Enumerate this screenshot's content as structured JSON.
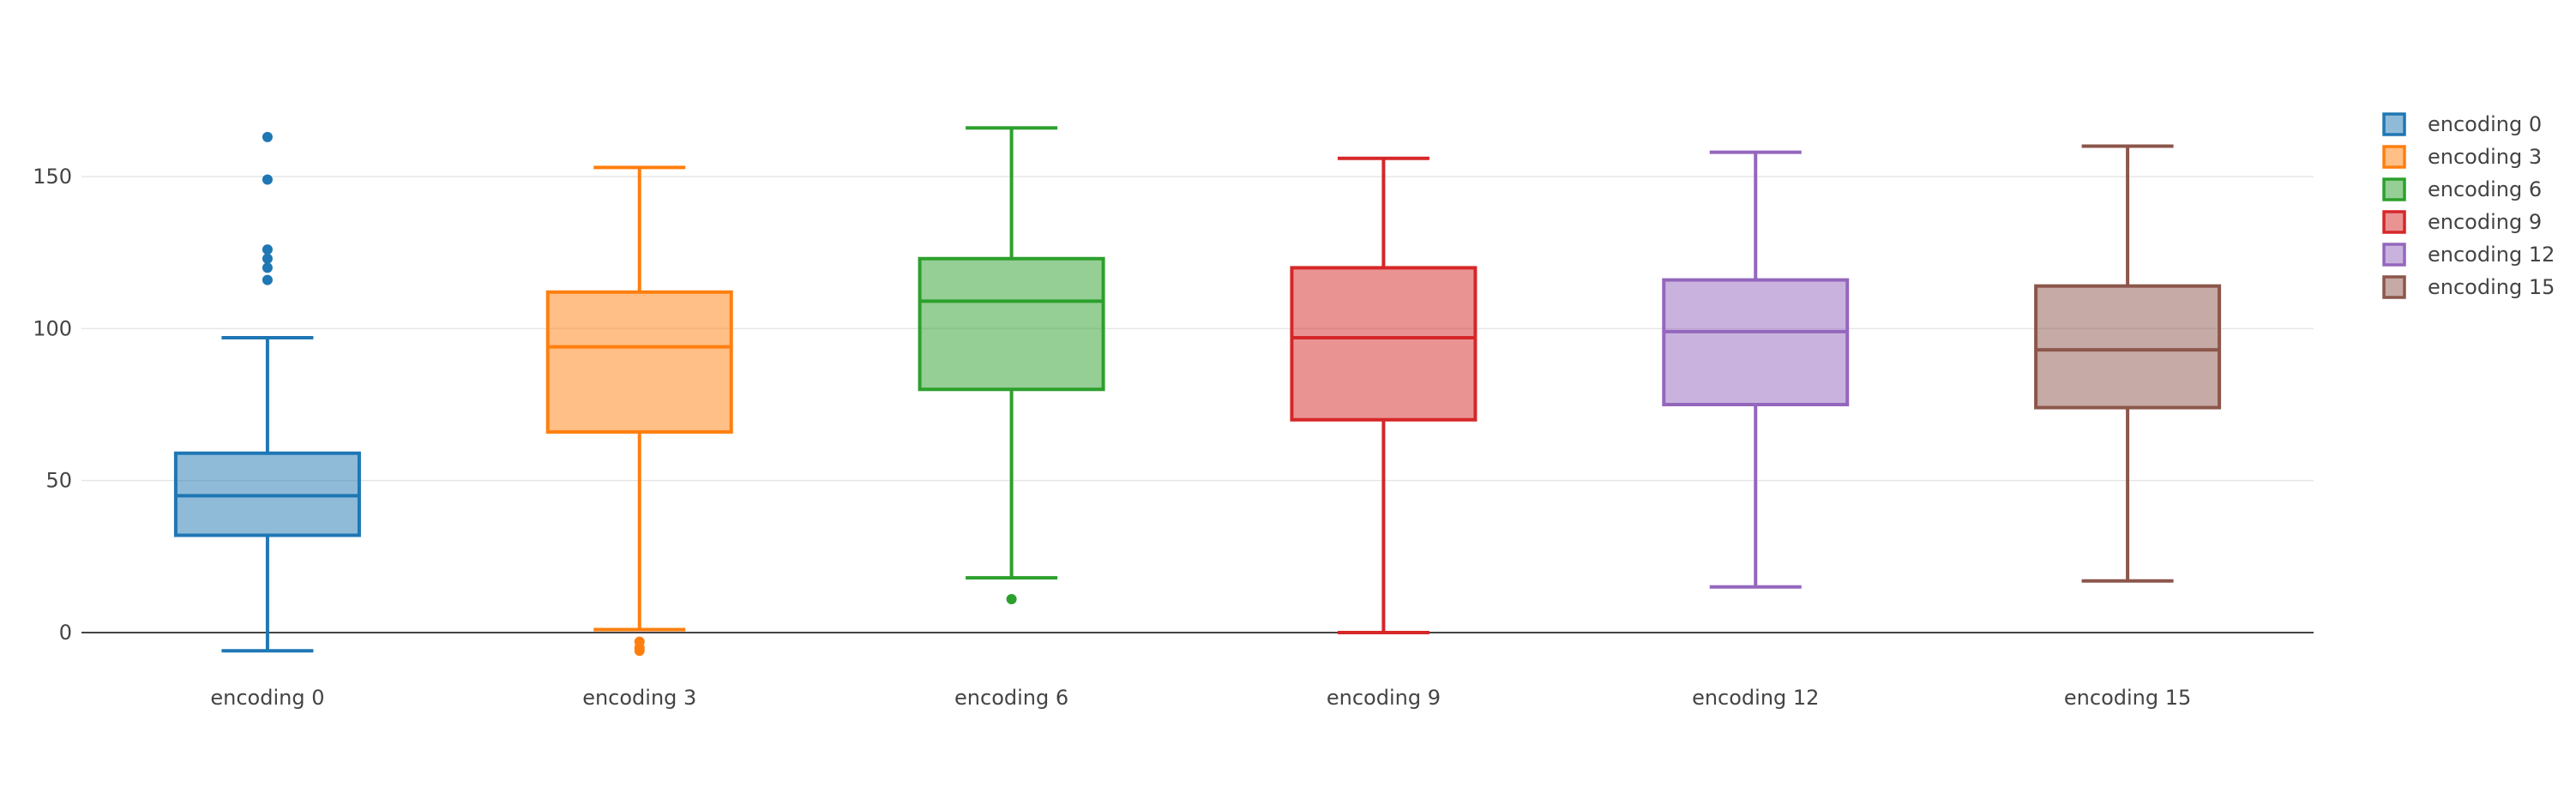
{
  "chart_data": {
    "type": "box",
    "title": "",
    "xlabel": "",
    "ylabel": "",
    "ylim": [
      -12,
      190
    ],
    "yticks": [
      0,
      50,
      100,
      150
    ],
    "grid": true,
    "legend_placement": "top-right",
    "series": [
      {
        "name": "encoding 0",
        "color": "#1f77b4",
        "min": -6,
        "q1": 32,
        "median": 45,
        "q3": 59,
        "max": 97,
        "outliers": [
          116,
          120,
          123,
          126,
          149,
          163
        ]
      },
      {
        "name": "encoding 3",
        "color": "#ff7f0e",
        "min": 1,
        "q1": 66,
        "median": 94,
        "q3": 112,
        "max": 153,
        "outliers": [
          -5,
          -6,
          -3
        ]
      },
      {
        "name": "encoding 6",
        "color": "#2ca02c",
        "min": 18,
        "q1": 80,
        "median": 109,
        "q3": 123,
        "max": 166,
        "outliers": [
          11
        ]
      },
      {
        "name": "encoding 9",
        "color": "#d62728",
        "min": 0,
        "q1": 70,
        "median": 97,
        "q3": 120,
        "max": 156,
        "outliers": []
      },
      {
        "name": "encoding 12",
        "color": "#9467bd",
        "min": 15,
        "q1": 75,
        "median": 99,
        "q3": 116,
        "max": 158,
        "outliers": []
      },
      {
        "name": "encoding 15",
        "color": "#8c564b",
        "min": 17,
        "q1": 74,
        "median": 93,
        "q3": 114,
        "max": 160,
        "outliers": []
      }
    ]
  }
}
